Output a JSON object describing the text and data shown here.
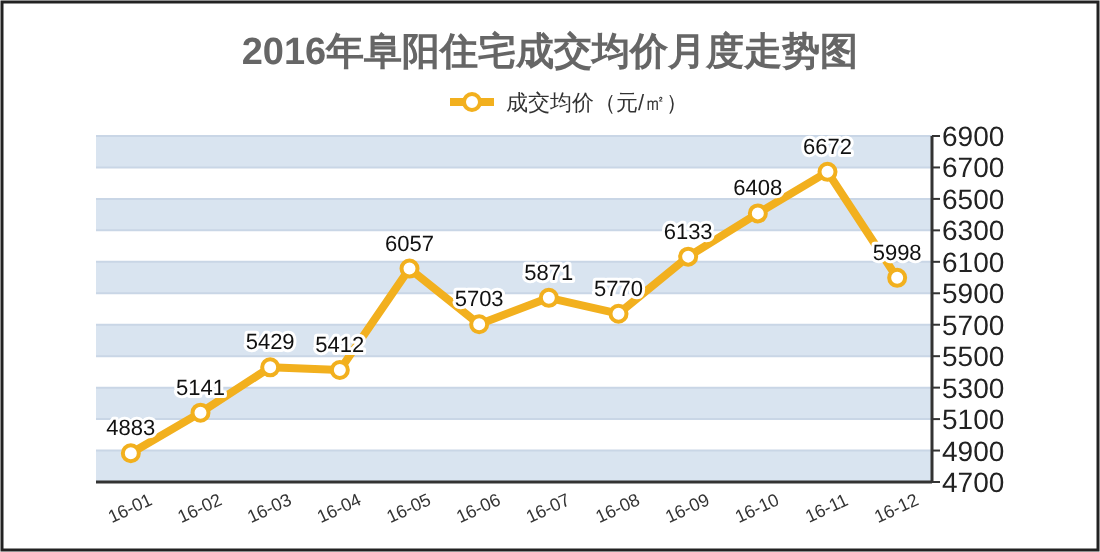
{
  "chart_data": {
    "type": "line",
    "title": "2016年阜阳住宅成交均价月度走势图",
    "categories": [
      "16-01",
      "16-02",
      "16-03",
      "16-04",
      "16-05",
      "16-06",
      "16-07",
      "16-08",
      "16-09",
      "16-10",
      "16-11",
      "16-12"
    ],
    "series": [
      {
        "name": "成交均价（元/㎡）",
        "color": "#f2b01e",
        "values": [
          4883,
          5141,
          5429,
          5412,
          6057,
          5703,
          5871,
          5770,
          6133,
          6408,
          6672,
          5998
        ]
      }
    ],
    "ylim": [
      4700,
      6900
    ],
    "yticks": [
      4700,
      4900,
      5100,
      5300,
      5500,
      5700,
      5900,
      6100,
      6300,
      6500,
      6700,
      6900
    ],
    "grid": "y",
    "legend": "top",
    "marker": "circle",
    "line_style": "solid",
    "data_labels": true
  }
}
